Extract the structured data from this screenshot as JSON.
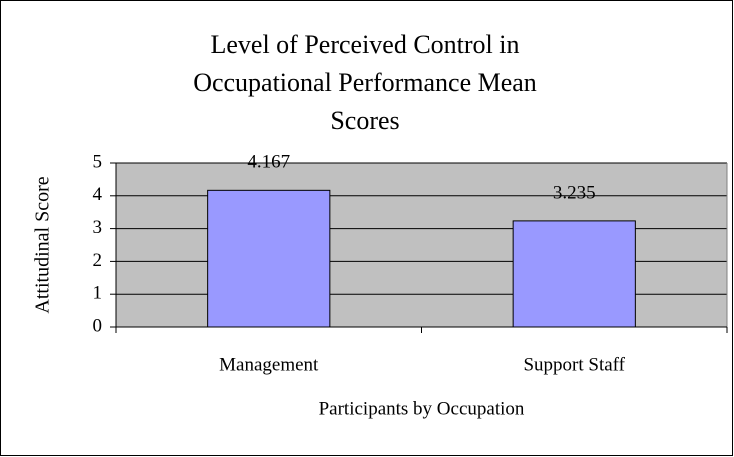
{
  "chart_data": {
    "type": "bar",
    "title": "Level of Perceived Control in Occupational Performance Mean Scores",
    "x_label": "Participants by Occupation",
    "y_label": "Attitudinal Score",
    "categories": [
      "Management",
      "Support Staff"
    ],
    "values": [
      4.167,
      3.235
    ],
    "color": "#9999ff",
    "ylim": [
      0,
      5
    ],
    "yticks": [
      0,
      1,
      2,
      3,
      4,
      5
    ],
    "grid": true,
    "data_labels": true
  }
}
